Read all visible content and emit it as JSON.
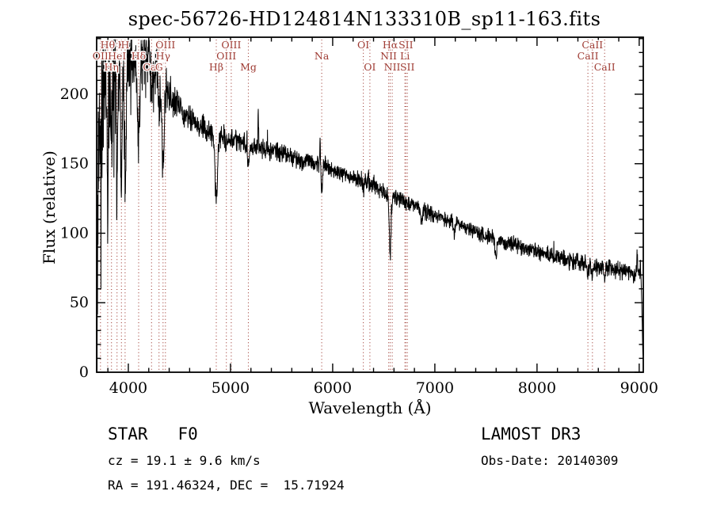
{
  "title": "spec-56726-HD124814N133310B_sp11-163.fits",
  "annotations": {
    "class_line": "STAR   F0",
    "cz_line": "cz = 19.1 ± 9.6 km/s",
    "radec_line": "RA = 191.46324, DEC =  15.71924",
    "survey": "LAMOST DR3",
    "obsdate_line": "Obs-Date: 20140309"
  },
  "chart_data": {
    "type": "line",
    "title": "spec-56726-HD124814N133310B_sp11-163.fits",
    "xlabel": "Wavelength (Å)",
    "ylabel": "Flux (relative)",
    "xlim": [
      3690,
      9040
    ],
    "ylim": [
      0,
      241
    ],
    "x_ticks": [
      4000,
      5000,
      6000,
      7000,
      8000,
      9000
    ],
    "y_ticks": [
      0,
      50,
      100,
      150,
      200
    ],
    "x_minor_step": 200,
    "y_minor_step": 10,
    "grid": false,
    "series_color": "#000000",
    "marker_color": "#9e3a32",
    "spectral_line_markers": [
      {
        "label": "OII",
        "wavelength": 3727,
        "row": 2
      },
      {
        "label": "Hθ",
        "wavelength": 3798,
        "row": 1
      },
      {
        "label": "Hη",
        "wavelength": 3835,
        "row": 3
      },
      {
        "label": "HeI",
        "wavelength": 3889,
        "row": 2
      },
      {
        "label": "K",
        "wavelength": 3933,
        "row": 1
      },
      {
        "label": "H",
        "wavelength": 3968,
        "row": 1
      },
      {
        "label": "Hδ",
        "wavelength": 4101,
        "row": 2
      },
      {
        "label": "CaI",
        "wavelength": 4227,
        "row": 3
      },
      {
        "label": "G",
        "wavelength": 4300,
        "row": 3
      },
      {
        "label": "Hγ",
        "wavelength": 4340,
        "row": 2
      },
      {
        "label": "OIII",
        "wavelength": 4363,
        "row": 1
      },
      {
        "label": "Hβ",
        "wavelength": 4861,
        "row": 3
      },
      {
        "label": "OIII",
        "wavelength": 4959,
        "row": 2
      },
      {
        "label": "OIII",
        "wavelength": 5007,
        "row": 1
      },
      {
        "label": "Mg",
        "wavelength": 5175,
        "row": 3
      },
      {
        "label": "Na",
        "wavelength": 5893,
        "row": 2
      },
      {
        "label": "OI",
        "wavelength": 6300,
        "row": 1
      },
      {
        "label": "OI",
        "wavelength": 6364,
        "row": 3
      },
      {
        "label": "NII",
        "wavelength": 6548,
        "row": 2
      },
      {
        "label": "Hα",
        "wavelength": 6563,
        "row": 1
      },
      {
        "label": "NII",
        "wavelength": 6583,
        "row": 3
      },
      {
        "label": "Li",
        "wavelength": 6707,
        "row": 2
      },
      {
        "label": "SII",
        "wavelength": 6716,
        "row": 1
      },
      {
        "label": "SII",
        "wavelength": 6731,
        "row": 3
      },
      {
        "label": "CaII",
        "wavelength": 8498,
        "row": 2
      },
      {
        "label": "CaII",
        "wavelength": 8542,
        "row": 1
      },
      {
        "label": "CaII",
        "wavelength": 8662,
        "row": 3
      }
    ],
    "continuum": [
      [
        3690,
        10
      ],
      [
        3697,
        90
      ],
      [
        3705,
        160
      ],
      [
        3715,
        185
      ],
      [
        3730,
        190
      ],
      [
        3750,
        200
      ],
      [
        3775,
        205
      ],
      [
        3800,
        210
      ],
      [
        3830,
        215
      ],
      [
        3860,
        218
      ],
      [
        3900,
        220
      ],
      [
        3940,
        224
      ],
      [
        3980,
        227
      ],
      [
        4020,
        229
      ],
      [
        4060,
        228
      ],
      [
        4100,
        227
      ],
      [
        4140,
        229
      ],
      [
        4180,
        228
      ],
      [
        4220,
        224
      ],
      [
        4260,
        219
      ],
      [
        4300,
        214
      ],
      [
        4350,
        208
      ],
      [
        4400,
        201
      ],
      [
        4450,
        195
      ],
      [
        4500,
        189
      ],
      [
        4560,
        184
      ],
      [
        4620,
        181
      ],
      [
        4700,
        177
      ],
      [
        4800,
        173
      ],
      [
        4900,
        170
      ],
      [
        5000,
        168
      ],
      [
        5100,
        165
      ],
      [
        5200,
        162
      ],
      [
        5300,
        162
      ],
      [
        5400,
        159
      ],
      [
        5500,
        158
      ],
      [
        5600,
        155
      ],
      [
        5700,
        152
      ],
      [
        5800,
        151
      ],
      [
        5900,
        150
      ],
      [
        6000,
        146
      ],
      [
        6100,
        143
      ],
      [
        6200,
        140
      ],
      [
        6300,
        137
      ],
      [
        6400,
        134
      ],
      [
        6500,
        130
      ],
      [
        6600,
        126
      ],
      [
        6700,
        123
      ],
      [
        6800,
        119
      ],
      [
        6900,
        116
      ],
      [
        7000,
        113
      ],
      [
        7100,
        110
      ],
      [
        7200,
        107
      ],
      [
        7300,
        104
      ],
      [
        7400,
        101
      ],
      [
        7500,
        98
      ],
      [
        7600,
        95
      ],
      [
        7700,
        93
      ],
      [
        7800,
        91
      ],
      [
        7900,
        89
      ],
      [
        8000,
        87
      ],
      [
        8100,
        85
      ],
      [
        8200,
        83
      ],
      [
        8300,
        81
      ],
      [
        8400,
        79
      ],
      [
        8500,
        77
      ],
      [
        8600,
        76
      ],
      [
        8700,
        75
      ],
      [
        8800,
        73
      ],
      [
        8900,
        72
      ],
      [
        9000,
        71
      ],
      [
        9012,
        76
      ],
      [
        9022,
        60
      ],
      [
        9032,
        25
      ],
      [
        9040,
        2
      ]
    ],
    "absorption_lines": [
      {
        "center": 3727,
        "depth": 25,
        "width": 7
      },
      {
        "center": 3798,
        "depth": 55,
        "width": 7
      },
      {
        "center": 3835,
        "depth": 65,
        "width": 7
      },
      {
        "center": 3889,
        "depth": 75,
        "width": 8
      },
      {
        "center": 3933,
        "depth": 85,
        "width": 8
      },
      {
        "center": 3970,
        "depth": 85,
        "width": 9
      },
      {
        "center": 4101,
        "depth": 70,
        "width": 11
      },
      {
        "center": 4227,
        "depth": 22,
        "width": 6
      },
      {
        "center": 4300,
        "depth": 25,
        "width": 9
      },
      {
        "center": 4340,
        "depth": 65,
        "width": 11
      },
      {
        "center": 4861,
        "depth": 50,
        "width": 11
      },
      {
        "center": 4959,
        "depth": 6,
        "width": 6
      },
      {
        "center": 5175,
        "depth": 14,
        "width": 10
      },
      {
        "center": 5893,
        "depth": 20,
        "width": 8
      },
      {
        "center": 6300,
        "depth": 6,
        "width": 5
      },
      {
        "center": 6563,
        "depth": 42,
        "width": 9
      },
      {
        "center": 6870,
        "depth": 10,
        "width": 7
      },
      {
        "center": 7190,
        "depth": 8,
        "width": 7
      },
      {
        "center": 7600,
        "depth": 12,
        "width": 9
      },
      {
        "center": 8498,
        "depth": 7,
        "width": 6
      },
      {
        "center": 8542,
        "depth": 9,
        "width": 6
      },
      {
        "center": 8662,
        "depth": 9,
        "width": 6
      }
    ],
    "emission_spikes": [
      {
        "center": 4512,
        "height": 14,
        "width": 3
      },
      {
        "center": 5272,
        "height": 24,
        "width": 3
      },
      {
        "center": 5877,
        "height": 26,
        "width": 3
      },
      {
        "center": 6350,
        "height": 10,
        "width": 3
      },
      {
        "center": 8980,
        "height": 12,
        "width": 4
      }
    ],
    "noise_profile": [
      [
        3690,
        55
      ],
      [
        3740,
        48
      ],
      [
        3790,
        42
      ],
      [
        3850,
        34
      ],
      [
        3920,
        28
      ],
      [
        4000,
        22
      ],
      [
        4080,
        20
      ],
      [
        4200,
        17
      ],
      [
        4300,
        14
      ],
      [
        4400,
        11
      ],
      [
        4500,
        9
      ],
      [
        4700,
        7.5
      ],
      [
        5000,
        6.5
      ],
      [
        5400,
        5.5
      ],
      [
        5900,
        5.2
      ],
      [
        6400,
        5
      ],
      [
        7000,
        4.6
      ],
      [
        7500,
        4.6
      ],
      [
        8000,
        5
      ],
      [
        8500,
        5.4
      ],
      [
        9000,
        5.2
      ]
    ],
    "noise_seed": 77,
    "sample_step": 2.2
  }
}
